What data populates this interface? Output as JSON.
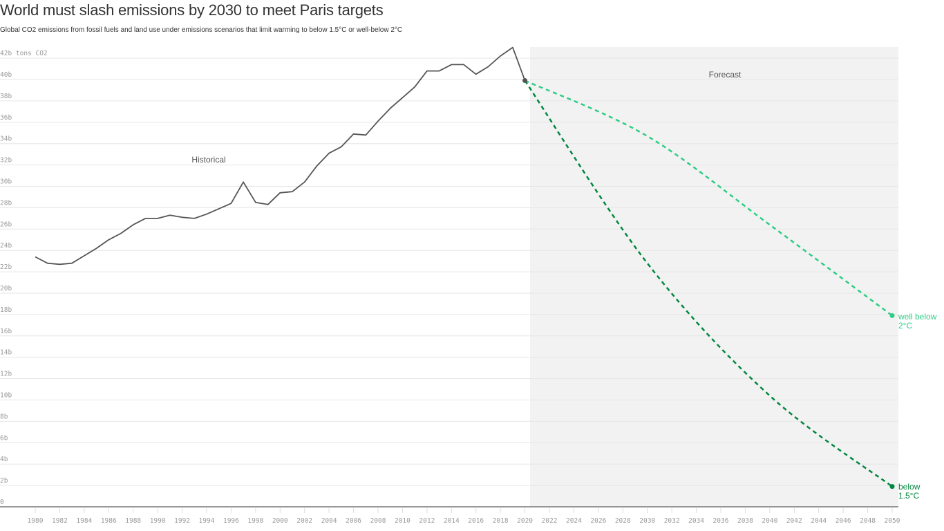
{
  "header": {
    "title": "World must slash emissions by 2030 to meet Paris targets",
    "subtitle": "Global CO2 emissions from fossil fuels and land use under emissions scenarios that limit warming to below 1.5°C or well-below 2°C"
  },
  "annotations": {
    "historical": "Historical",
    "forecast": "Forecast",
    "label_2c_line1": "well below",
    "label_2c_line2": "2°C",
    "label_15c_line1": "below",
    "label_15c_line2": "1.5°C"
  },
  "colors": {
    "historical": "#555555",
    "well_below_2c": "#2ecc85",
    "below_1_5c": "#00873e",
    "forecast_bg": "#f2f2f2",
    "grid": "#e6e6e6",
    "tick_text": "#999999"
  },
  "chart_data": {
    "type": "line",
    "title": "World must slash emissions by 2030 to meet Paris targets",
    "subtitle": "Global CO2 emissions from fossil fuels and land use under emissions scenarios that limit warming to below 1.5°C or well-below 2°C",
    "xlabel": "",
    "ylabel": "tons CO2",
    "ylim": [
      0,
      42
    ],
    "xlim": [
      1980,
      2050
    ],
    "grid": true,
    "y_ticks": [
      "0",
      "2b",
      "4b",
      "6b",
      "8b",
      "10b",
      "12b",
      "14b",
      "16b",
      "18b",
      "20b",
      "22b",
      "24b",
      "26b",
      "28b",
      "30b",
      "32b",
      "34b",
      "36b",
      "38b",
      "40b",
      "42b tons CO2"
    ],
    "x_ticks": [
      "1980",
      "1982",
      "1984",
      "1986",
      "1988",
      "1990",
      "1992",
      "1994",
      "1996",
      "1998",
      "2000",
      "2002",
      "2004",
      "2006",
      "2008",
      "2010",
      "2012",
      "2014",
      "2016",
      "2018",
      "2020",
      "2022",
      "2024",
      "2026",
      "2028",
      "2030",
      "2032",
      "2034",
      "2036",
      "2038",
      "2040",
      "2042",
      "2044",
      "2046",
      "2048",
      "2050"
    ],
    "shaded_region": {
      "label": "Forecast",
      "x_start": 2020.4,
      "x_end": 2050.5
    },
    "series": [
      {
        "name": "Historical",
        "style": "solid",
        "x": [
          1980,
          1981,
          1982,
          1983,
          1984,
          1985,
          1986,
          1987,
          1988,
          1989,
          1990,
          1991,
          1992,
          1993,
          1994,
          1995,
          1996,
          1997,
          1998,
          1999,
          2000,
          2001,
          2002,
          2003,
          2004,
          2005,
          2006,
          2007,
          2008,
          2009,
          2010,
          2011,
          2012,
          2013,
          2014,
          2015,
          2016,
          2017,
          2018,
          2019,
          2020
        ],
        "values": [
          23.4,
          22.8,
          22.7,
          22.8,
          23.5,
          24.2,
          25.0,
          25.6,
          26.4,
          27.0,
          27.0,
          27.3,
          27.1,
          27.0,
          27.4,
          27.9,
          28.4,
          30.4,
          28.5,
          28.3,
          29.4,
          29.5,
          30.4,
          31.9,
          33.1,
          33.7,
          34.9,
          34.8,
          36.1,
          37.3,
          38.3,
          39.3,
          40.8,
          40.8,
          41.4,
          41.4,
          40.5,
          41.2,
          42.2,
          43.0,
          39.9
        ]
      },
      {
        "name": "well below 2°C",
        "style": "dashed",
        "x": [
          2020,
          2030,
          2040,
          2050
        ],
        "values": [
          39.9,
          34.7,
          26.4,
          17.9
        ]
      },
      {
        "name": "below 1.5°C",
        "style": "dashed",
        "x": [
          2020,
          2030,
          2040,
          2050
        ],
        "values": [
          39.9,
          22.8,
          10.4,
          1.9
        ]
      }
    ]
  }
}
